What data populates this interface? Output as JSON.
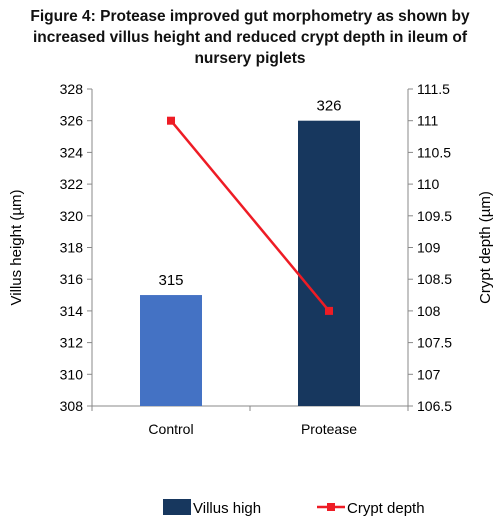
{
  "chart_data": {
    "type": "bar",
    "title_lines": [
      "Figure 4: Protease improved gut morphometry as shown by",
      "increased villus height and reduced crypt depth in ileum of",
      "nursery piglets"
    ],
    "categories": [
      "Control",
      "Protease"
    ],
    "series": [
      {
        "name": "Villus high",
        "type": "bar",
        "axis": "left",
        "values": [
          315,
          326
        ],
        "data_labels": [
          "315",
          "326"
        ],
        "colors": [
          "#4472C4",
          "#17375E"
        ]
      },
      {
        "name": "Crypt depth",
        "type": "line",
        "axis": "right",
        "values": [
          111,
          108
        ],
        "color": "#EE1C25"
      }
    ],
    "ylabel": "Villus height (µm)",
    "y2label": "Crypt depth (µm)",
    "ylim": [
      308,
      328
    ],
    "yticks": [
      "328",
      "326",
      "324",
      "322",
      "320",
      "318",
      "316",
      "314",
      "312",
      "310",
      "308"
    ],
    "y2lim": [
      106.5,
      111.5
    ],
    "y2ticks": [
      "111.5",
      "111",
      "110.5",
      "110",
      "109.5",
      "109",
      "108.5",
      "108",
      "107.5",
      "107",
      "106.5"
    ],
    "grid": false,
    "legend_position": "bottom"
  }
}
